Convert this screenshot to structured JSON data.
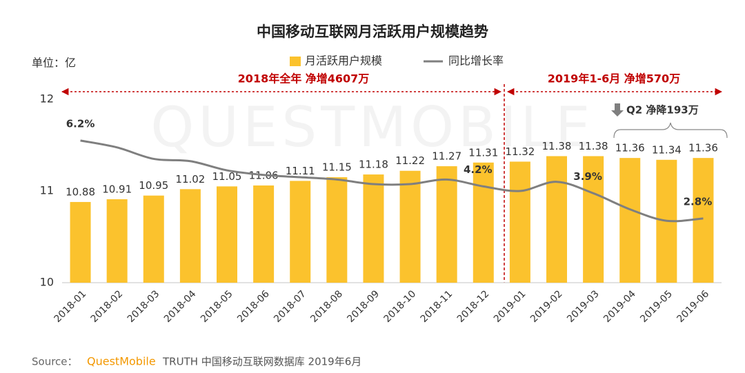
{
  "chart_data": {
    "type": "bar_line",
    "title": "中国移动互联网月活跃用户规模趋势",
    "unit_label": "单位：亿",
    "watermark": "QUESTMOBILE",
    "categories": [
      "2018-01",
      "2018-02",
      "2018-03",
      "2018-04",
      "2018-05",
      "2018-06",
      "2018-07",
      "2018-08",
      "2018-09",
      "2018-10",
      "2018-11",
      "2018-12",
      "2019-01",
      "2019-02",
      "2019-03",
      "2019-04",
      "2019-05",
      "2019-06"
    ],
    "series": [
      {
        "name": "月活跃用户规模",
        "type": "bar",
        "color": "#fbc22d",
        "values": [
          10.88,
          10.91,
          10.95,
          11.02,
          11.05,
          11.06,
          11.11,
          11.15,
          11.18,
          11.22,
          11.27,
          11.31,
          11.32,
          11.38,
          11.38,
          11.36,
          11.34,
          11.36
        ]
      },
      {
        "name": "同比增长率",
        "type": "line",
        "axis": "y2",
        "color": "#7f7f7f",
        "values": [
          6.2,
          5.9,
          5.4,
          5.3,
          4.9,
          4.7,
          4.6,
          4.5,
          4.3,
          4.3,
          4.5,
          4.2,
          4.0,
          4.4,
          3.9,
          3.2,
          2.7,
          2.8
        ],
        "value_labels": [
          "6.2%",
          null,
          null,
          null,
          null,
          null,
          null,
          null,
          null,
          null,
          null,
          "4.2%",
          null,
          null,
          "3.9%",
          null,
          null,
          "2.8%"
        ]
      }
    ],
    "ylim": [
      10,
      12
    ],
    "yticks": [
      10,
      11,
      12
    ],
    "y2lim": [
      0,
      8
    ],
    "annotations": {
      "period_2018": "2018年全年  净增4607万",
      "period_2019": "2019年1-6月  净增570万",
      "q2": "Q2 净降193万"
    }
  },
  "source": {
    "label": "Source：",
    "brand": "QuestMobile",
    "text": "TRUTH 中国移动互联网数据库 2019年6月"
  }
}
